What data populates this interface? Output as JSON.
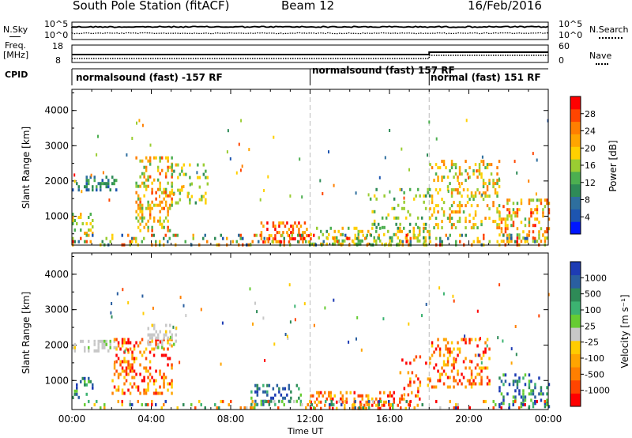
{
  "header": {
    "station": "South Pole Station (fitACF)",
    "beam": "Beam 12",
    "date": "16/Feb/2016"
  },
  "top_strip": {
    "nsky_label": "N.Sky",
    "nsearch_label": "N.Search",
    "freq_label_1": "Freq.",
    "freq_label_2": "[MHz]",
    "nave_label": "Nave",
    "cpid_label": "CPID",
    "noise_ticks_left": [
      "10^5",
      "10^0"
    ],
    "noise_ticks_right": [
      "10^5",
      "10^0"
    ],
    "freq_ticks_left": [
      "18",
      "8"
    ],
    "freq_ticks_right": [
      "60",
      "0"
    ]
  },
  "cpid_segments": [
    {
      "label": "normalsound (fast) -157 RF",
      "start_hour": 0
    },
    {
      "label": "normalsound (fast) 157 RF",
      "start_hour": 12
    },
    {
      "label": "normal (fast) 151 RF",
      "start_hour": 18
    }
  ],
  "chart_data": [
    {
      "type": "heatmap",
      "quantity": "Power",
      "ylabel": "Slant Range [km]",
      "colorbar_label": "Power [dB]",
      "ylim": [
        180,
        4600
      ],
      "xlim": [
        0,
        24
      ],
      "yticks": [
        "1000",
        "2000",
        "3000",
        "4000"
      ],
      "colorbar_ticks": [
        "4",
        "8",
        "12",
        "16",
        "20",
        "24",
        "28"
      ],
      "colorbar_range": [
        0,
        30
      ],
      "colorbar_colors": [
        "#0016ff",
        "#1d55b0",
        "#2e6f9e",
        "#2e8b57",
        "#4caf50",
        "#9acd32",
        "#ffd000",
        "#ffa500",
        "#ff7f00",
        "#ff4500",
        "#ff0000"
      ],
      "scatter_regions": [
        {
          "x": [
            0.0,
            2.2
          ],
          "y": [
            1750,
            2150
          ],
          "density": 0.6,
          "level": [
            4,
            12
          ]
        },
        {
          "x": [
            0.0,
            1.0
          ],
          "y": [
            500,
            1100
          ],
          "density": 0.7,
          "level": [
            10,
            22
          ]
        },
        {
          "x": [
            3.2,
            5.0
          ],
          "y": [
            600,
            2700
          ],
          "density": 0.55,
          "level": [
            12,
            26
          ]
        },
        {
          "x": [
            5.0,
            6.8
          ],
          "y": [
            1400,
            2500
          ],
          "density": 0.4,
          "level": [
            10,
            20
          ]
        },
        {
          "x": [
            9.5,
            12.0
          ],
          "y": [
            250,
            850
          ],
          "density": 0.6,
          "level": [
            18,
            30
          ]
        },
        {
          "x": [
            12.0,
            18.0
          ],
          "y": [
            250,
            700
          ],
          "density": 0.55,
          "level": [
            10,
            22
          ]
        },
        {
          "x": [
            15.0,
            18.0
          ],
          "y": [
            700,
            1800
          ],
          "density": 0.25,
          "level": [
            8,
            18
          ]
        },
        {
          "x": [
            18.0,
            21.5
          ],
          "y": [
            700,
            2600
          ],
          "density": 0.45,
          "level": [
            12,
            24
          ]
        },
        {
          "x": [
            21.5,
            24.0
          ],
          "y": [
            250,
            1500
          ],
          "density": 0.5,
          "level": [
            12,
            28
          ]
        },
        {
          "x": [
            0.0,
            24.0
          ],
          "y": [
            200,
            500
          ],
          "density": 0.35,
          "level": [
            4,
            28
          ]
        }
      ]
    },
    {
      "type": "heatmap",
      "quantity": "Velocity",
      "ylabel": "Slant Range [km]",
      "xlabel": "Time UT",
      "colorbar_label": "Velocity [m s⁻¹]",
      "ylim": [
        180,
        4600
      ],
      "xlim": [
        0,
        24
      ],
      "yticks": [
        "1000",
        "2000",
        "3000",
        "4000"
      ],
      "xticks": [
        "00:00",
        "04:00",
        "08:00",
        "12:00",
        "16:00",
        "20:00",
        "00:00"
      ],
      "colorbar_ticks": [
        "1000",
        "500",
        "100",
        "25",
        "-25",
        "-100",
        "-500",
        "-1000"
      ],
      "colorbar_colors": [
        "#1e3cb4",
        "#2a5fa0",
        "#2e8b57",
        "#3cb371",
        "#66cc33",
        "#c8c8c8",
        "#ffcc00",
        "#ffa500",
        "#ff7f00",
        "#ff4500",
        "#ff0000"
      ],
      "scatter_regions": [
        {
          "x": [
            0.0,
            2.2
          ],
          "y": [
            1800,
            2150
          ],
          "density": 0.65,
          "kind": "gray"
        },
        {
          "x": [
            0.0,
            1.0
          ],
          "y": [
            500,
            1100
          ],
          "density": 0.6,
          "kind": "pos"
        },
        {
          "x": [
            2.0,
            5.0
          ],
          "y": [
            600,
            2200
          ],
          "density": 0.5,
          "kind": "neg"
        },
        {
          "x": [
            3.8,
            5.2
          ],
          "y": [
            1900,
            2600
          ],
          "density": 0.5,
          "kind": "gray"
        },
        {
          "x": [
            9.0,
            11.5
          ],
          "y": [
            300,
            900
          ],
          "density": 0.5,
          "kind": "pos"
        },
        {
          "x": [
            12.0,
            17.5
          ],
          "y": [
            250,
            700
          ],
          "density": 0.55,
          "kind": "neg"
        },
        {
          "x": [
            16.5,
            18.0
          ],
          "y": [
            600,
            1800
          ],
          "density": 0.3,
          "kind": "neg"
        },
        {
          "x": [
            18.0,
            21.0
          ],
          "y": [
            800,
            2200
          ],
          "density": 0.5,
          "kind": "neg"
        },
        {
          "x": [
            21.5,
            24.0
          ],
          "y": [
            250,
            1200
          ],
          "density": 0.45,
          "kind": "pos"
        },
        {
          "x": [
            0.0,
            24.0
          ],
          "y": [
            200,
            450
          ],
          "density": 0.3,
          "kind": "mix"
        }
      ]
    }
  ]
}
